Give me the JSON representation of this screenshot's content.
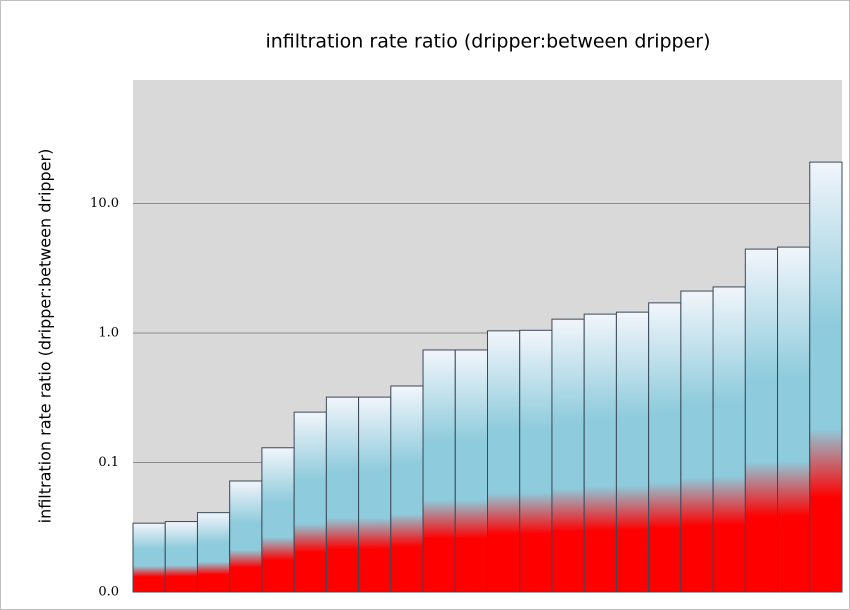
{
  "chart_data": {
    "type": "bar",
    "title": "infiltration rate ratio (dripper:between dripper)",
    "y_label": "infiltration rate ratio (dripper:between dripper)",
    "values": [
      0.034,
      0.035,
      0.041,
      0.072,
      0.13,
      0.245,
      0.32,
      0.32,
      0.39,
      0.74,
      0.74,
      1.04,
      1.05,
      1.28,
      1.4,
      1.45,
      1.71,
      2.11,
      2.27,
      4.45,
      4.61,
      20.9
    ],
    "gradient": [
      "#ff0000",
      "#8ecbdc",
      "#f2f5fb"
    ],
    "edge_color": "#3a4a5a",
    "background": "#d9d9d9",
    "log_scale": true,
    "ylim": [
      0.01,
      90
    ],
    "yticks": [
      {
        "value": 0.01,
        "label": "0.0"
      },
      0.1,
      {
        "value": 1,
        "label": "1.0"
      },
      {
        "value": 10,
        "label": "10.0"
      }
    ],
    "grid": true
  }
}
